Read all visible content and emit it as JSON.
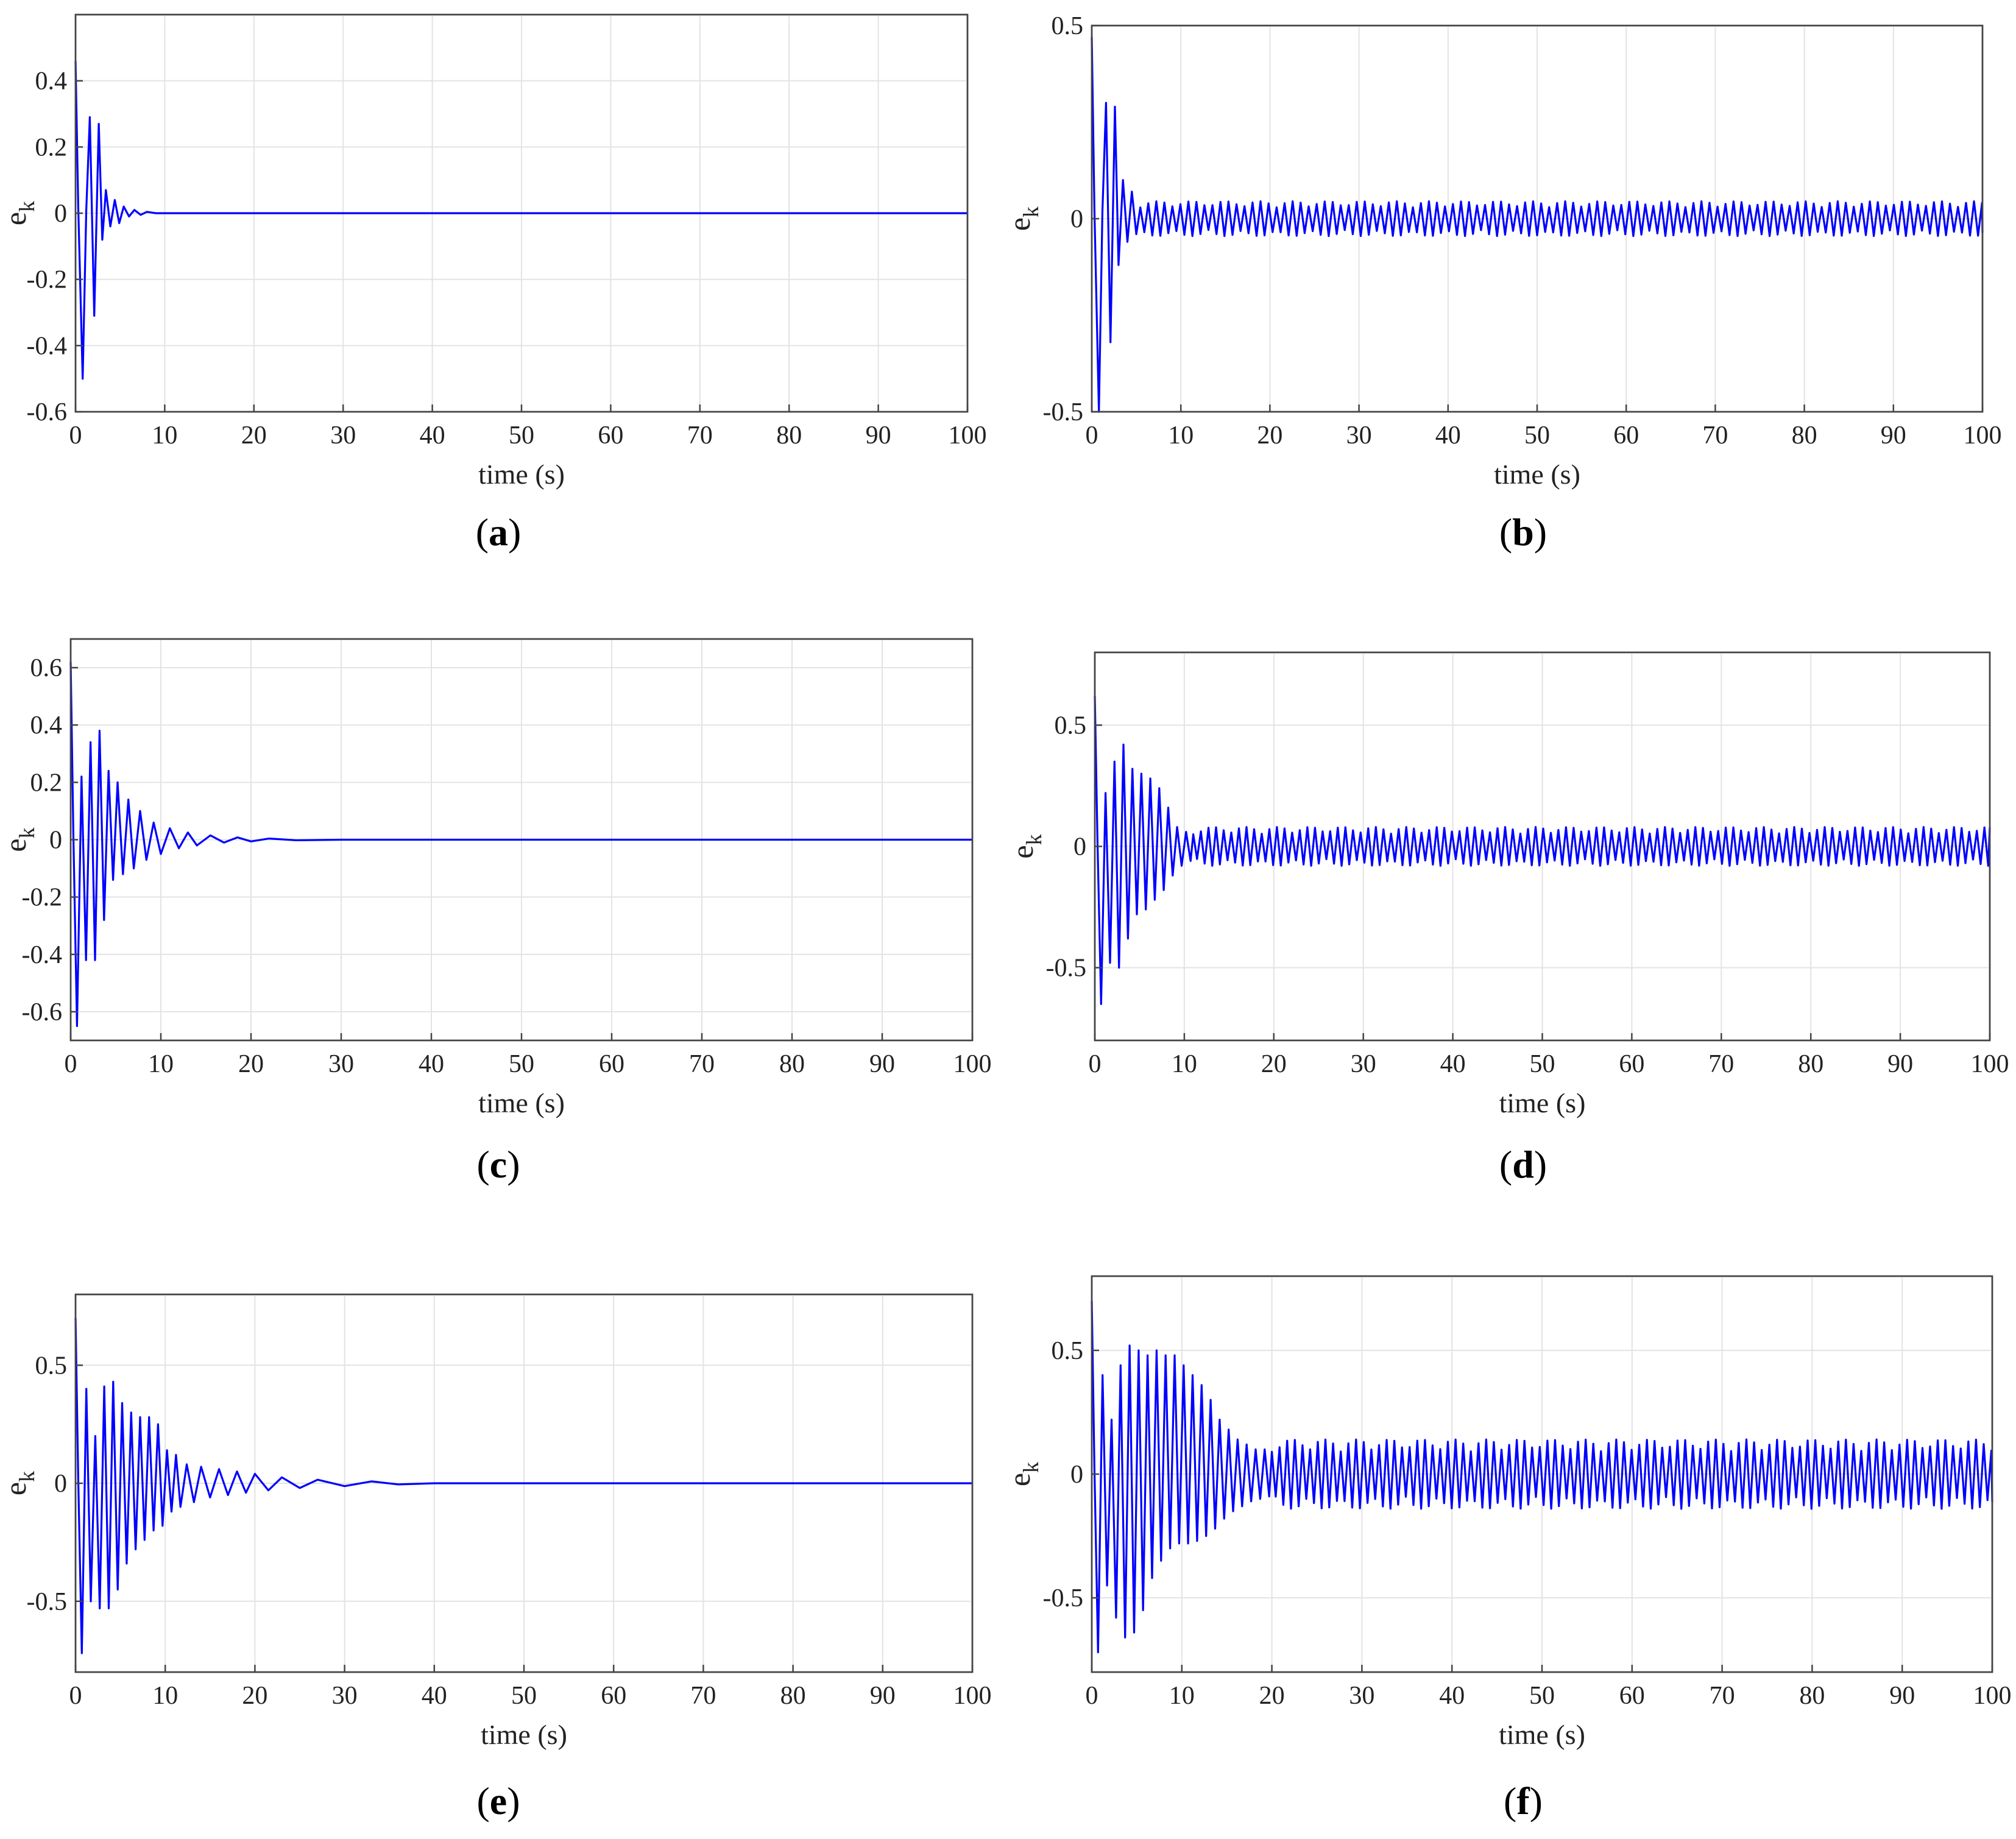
{
  "chart_data": [
    {
      "panel": "(a)",
      "type": "line",
      "xlabel": "time (s)",
      "ylabel": "e",
      "ylabel_sub": "k",
      "xlim": [
        0,
        100
      ],
      "ylim": [
        -0.6,
        0.6
      ],
      "xticks": [
        0,
        10,
        20,
        30,
        40,
        50,
        60,
        70,
        80,
        90,
        100
      ],
      "yticks": [
        -0.6,
        -0.4,
        -0.2,
        0,
        0.2,
        0.4
      ],
      "ytick_labels": [
        "-0.6",
        "-0.4",
        "-0.2",
        "0",
        "0.2",
        "0.4"
      ],
      "grid": true,
      "series": [
        {
          "color": "#0000ff",
          "x": [
            0,
            0.3,
            0.8,
            1.2,
            1.6,
            2.1,
            2.6,
            3.0,
            3.4,
            3.9,
            4.4,
            4.9,
            5.4,
            6.0,
            6.6,
            7.3,
            8.0,
            9.0,
            10,
            20,
            30,
            40,
            50,
            60,
            70,
            80,
            90,
            100
          ],
          "y": [
            0.46,
            0.02,
            -0.5,
            0.01,
            0.29,
            -0.31,
            0.27,
            -0.08,
            0.07,
            -0.04,
            0.04,
            -0.03,
            0.02,
            -0.01,
            0.01,
            -0.005,
            0.004,
            0,
            0,
            0,
            0,
            0,
            0,
            0,
            0,
            0,
            0,
            0
          ]
        }
      ]
    },
    {
      "panel": "(b)",
      "type": "line",
      "xlabel": "time (s)",
      "ylabel": "e",
      "ylabel_sub": "k",
      "xlim": [
        0,
        100
      ],
      "ylim": [
        -0.5,
        0.5
      ],
      "xticks": [
        0,
        10,
        20,
        30,
        40,
        50,
        60,
        70,
        80,
        90,
        100
      ],
      "yticks": [
        -0.5,
        0,
        0.5
      ],
      "ytick_labels": [
        "-0.5",
        "0",
        "0.5"
      ],
      "grid": true,
      "steady_state": {
        "from": 5,
        "amplitude": 0.045,
        "period": 0.9
      },
      "series": [
        {
          "color": "#0000ff",
          "x": [
            0,
            0.3,
            0.8,
            1.2,
            1.6,
            2.1,
            2.6,
            3.0,
            3.5,
            4.0,
            4.5,
            5.0
          ],
          "y": [
            0.47,
            0.02,
            -0.5,
            0.02,
            0.3,
            -0.32,
            0.29,
            -0.12,
            0.1,
            -0.06,
            0.07,
            -0.04
          ]
        }
      ]
    },
    {
      "panel": "(c)",
      "type": "line",
      "xlabel": "time (s)",
      "ylabel": "e",
      "ylabel_sub": "k",
      "xlim": [
        0,
        100
      ],
      "ylim": [
        -0.7,
        0.7
      ],
      "xticks": [
        0,
        10,
        20,
        30,
        40,
        50,
        60,
        70,
        80,
        90,
        100
      ],
      "yticks": [
        -0.6,
        -0.4,
        -0.2,
        0,
        0.2,
        0.4,
        0.6
      ],
      "ytick_labels": [
        "-0.6",
        "-0.4",
        "-0.2",
        "0",
        "0.2",
        "0.4",
        "0.6"
      ],
      "grid": true,
      "series": [
        {
          "color": "#0000ff",
          "x": [
            0,
            0.3,
            0.7,
            1.2,
            1.7,
            2.2,
            2.7,
            3.2,
            3.7,
            4.2,
            4.7,
            5.2,
            5.8,
            6.4,
            7.0,
            7.7,
            8.4,
            9.2,
            10.0,
            11.0,
            12.0,
            13.0,
            14.0,
            15.5,
            17.0,
            18.5,
            20.0,
            22.0,
            25.0,
            30,
            40,
            50,
            60,
            70,
            80,
            90,
            100
          ],
          "y": [
            0.62,
            0.02,
            -0.65,
            0.22,
            -0.42,
            0.34,
            -0.42,
            0.38,
            -0.28,
            0.24,
            -0.14,
            0.2,
            -0.12,
            0.14,
            -0.1,
            0.1,
            -0.07,
            0.06,
            -0.05,
            0.04,
            -0.03,
            0.025,
            -0.02,
            0.015,
            -0.01,
            0.008,
            -0.006,
            0.004,
            -0.002,
            0,
            0,
            0,
            0,
            0,
            0,
            0,
            0
          ]
        }
      ]
    },
    {
      "panel": "(d)",
      "type": "line",
      "xlabel": "time (s)",
      "ylabel": "e",
      "ylabel_sub": "k",
      "xlim": [
        0,
        100
      ],
      "ylim": [
        -0.8,
        0.8
      ],
      "xticks": [
        0,
        10,
        20,
        30,
        40,
        50,
        60,
        70,
        80,
        90,
        100
      ],
      "yticks": [
        -0.5,
        0,
        0.5
      ],
      "ytick_labels": [
        "-0.5",
        "0",
        "0.5"
      ],
      "grid": true,
      "steady_state": {
        "from": 11,
        "amplitude": 0.08,
        "period": 0.85
      },
      "series": [
        {
          "color": "#0000ff",
          "x": [
            0,
            0.3,
            0.7,
            1.2,
            1.7,
            2.2,
            2.7,
            3.2,
            3.7,
            4.2,
            4.7,
            5.2,
            5.7,
            6.2,
            6.7,
            7.2,
            7.7,
            8.2,
            8.7,
            9.2,
            9.7,
            10.2,
            10.7,
            11.0
          ],
          "y": [
            0.62,
            0.02,
            -0.65,
            0.22,
            -0.48,
            0.35,
            -0.5,
            0.42,
            -0.38,
            0.32,
            -0.28,
            0.3,
            -0.26,
            0.28,
            -0.22,
            0.24,
            -0.18,
            0.16,
            -0.12,
            0.08,
            -0.08,
            0.06,
            -0.06,
            0.05
          ]
        }
      ]
    },
    {
      "panel": "(e)",
      "type": "line",
      "xlabel": "time (s)",
      "ylabel": "e",
      "ylabel_sub": "k",
      "xlim": [
        0,
        100
      ],
      "ylim": [
        -0.8,
        0.8
      ],
      "xticks": [
        0,
        10,
        20,
        30,
        40,
        50,
        60,
        70,
        80,
        90,
        100
      ],
      "yticks": [
        -0.5,
        0,
        0.5
      ],
      "ytick_labels": [
        "-0.5",
        "0",
        "0.5"
      ],
      "grid": true,
      "series": [
        {
          "color": "#0000ff",
          "x": [
            0,
            0.3,
            0.7,
            1.2,
            1.7,
            2.2,
            2.7,
            3.2,
            3.7,
            4.2,
            4.7,
            5.2,
            5.7,
            6.2,
            6.7,
            7.2,
            7.7,
            8.2,
            8.7,
            9.2,
            9.7,
            10.2,
            10.7,
            11.2,
            11.7,
            12.4,
            13.2,
            14.0,
            15.0,
            16.0,
            17.0,
            18.0,
            19.0,
            20.0,
            21.5,
            23.0,
            25.0,
            27.0,
            30.0,
            33.0,
            36.0,
            40,
            50,
            60,
            70,
            80,
            90,
            100
          ],
          "y": [
            0.7,
            0.02,
            -0.72,
            0.4,
            -0.5,
            0.2,
            -0.53,
            0.41,
            -0.53,
            0.43,
            -0.45,
            0.34,
            -0.34,
            0.3,
            -0.28,
            0.28,
            -0.24,
            0.28,
            -0.2,
            0.25,
            -0.18,
            0.14,
            -0.12,
            0.12,
            -0.1,
            0.08,
            -0.08,
            0.07,
            -0.06,
            0.06,
            -0.05,
            0.05,
            -0.04,
            0.04,
            -0.03,
            0.025,
            -0.02,
            0.015,
            -0.012,
            0.008,
            -0.005,
            0,
            0,
            0,
            0,
            0,
            0,
            0
          ]
        }
      ]
    },
    {
      "panel": "(f)",
      "type": "line",
      "xlabel": "time (s)",
      "ylabel": "e",
      "ylabel_sub": "k",
      "xlim": [
        0,
        100
      ],
      "ylim": [
        -0.8,
        0.8
      ],
      "xticks": [
        0,
        10,
        20,
        30,
        40,
        50,
        60,
        70,
        80,
        90,
        100
      ],
      "yticks": [
        -0.5,
        0,
        0.5
      ],
      "ytick_labels": [
        "-0.5",
        "0",
        "0.5"
      ],
      "grid": true,
      "steady_state": {
        "from": 20,
        "amplitude": 0.14,
        "period": 0.85
      },
      "series": [
        {
          "color": "#0000ff",
          "x": [
            0,
            0.3,
            0.7,
            1.2,
            1.7,
            2.2,
            2.7,
            3.2,
            3.7,
            4.2,
            4.7,
            5.2,
            5.7,
            6.2,
            6.7,
            7.2,
            7.7,
            8.2,
            8.7,
            9.2,
            9.7,
            10.2,
            10.7,
            11.2,
            11.7,
            12.2,
            12.7,
            13.2,
            13.7,
            14.2,
            14.7,
            15.2,
            15.7,
            16.2,
            16.7,
            17.2,
            17.7,
            18.2,
            18.7,
            19.2,
            19.7,
            20.0
          ],
          "y": [
            0.7,
            0.02,
            -0.72,
            0.4,
            -0.45,
            0.22,
            -0.58,
            0.44,
            -0.66,
            0.52,
            -0.64,
            0.5,
            -0.55,
            0.48,
            -0.42,
            0.5,
            -0.35,
            0.48,
            -0.3,
            0.48,
            -0.28,
            0.44,
            -0.28,
            0.4,
            -0.27,
            0.36,
            -0.25,
            0.3,
            -0.22,
            0.22,
            -0.18,
            0.18,
            -0.15,
            0.14,
            -0.13,
            0.12,
            -0.11,
            0.1,
            -0.1,
            0.1,
            -0.09,
            0.09
          ]
        }
      ]
    }
  ]
}
